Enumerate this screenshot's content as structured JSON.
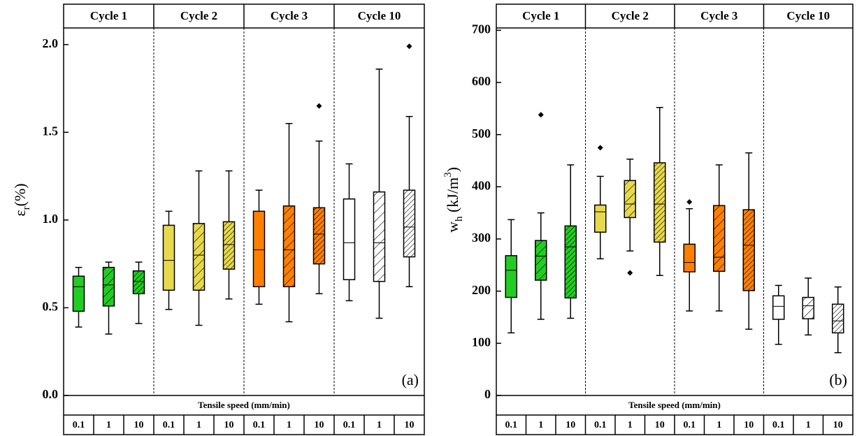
{
  "chart_data": [
    {
      "type": "box",
      "panel_label": "(a)",
      "ylabel": [
        {
          "text": "ε"
        },
        {
          "text": "r",
          "shift": "sub"
        },
        {
          "text": "(%)"
        }
      ],
      "xlabel": "Tensile speed (mm/min)",
      "groups": [
        "Cycle 1",
        "Cycle 2",
        "Cycle 3",
        "Cycle 10"
      ],
      "group_colors": [
        "#22cc22",
        "#e8d94c",
        "#ff8000",
        "#ffffff"
      ],
      "categories": [
        "0.1",
        "1",
        "10",
        "0.1",
        "1",
        "10",
        "0.1",
        "1",
        "10",
        "0.1",
        "1",
        "10"
      ],
      "hatch": [
        "none",
        "sparse",
        "dense",
        "none",
        "sparse",
        "dense",
        "none",
        "sparse",
        "dense",
        "none",
        "sparse",
        "dense"
      ],
      "ylim": [
        0,
        2.23
      ],
      "yticks": [
        {
          "value": 0,
          "label": "0.0"
        },
        0.5,
        {
          "value": 1,
          "label": "1.0"
        },
        1.5,
        {
          "value": 2,
          "label": "2.0"
        }
      ],
      "boxes": [
        {
          "whislo": 0.39,
          "q1": 0.48,
          "med": 0.62,
          "q3": 0.68,
          "whishi": 0.73,
          "fliers": []
        },
        {
          "whislo": 0.35,
          "q1": 0.51,
          "med": 0.63,
          "q3": 0.73,
          "whishi": 0.76,
          "fliers": []
        },
        {
          "whislo": 0.41,
          "q1": 0.58,
          "med": 0.65,
          "q3": 0.71,
          "whishi": 0.76,
          "fliers": []
        },
        {
          "whislo": 0.49,
          "q1": 0.6,
          "med": 0.77,
          "q3": 0.97,
          "whishi": 1.05,
          "fliers": []
        },
        {
          "whislo": 0.4,
          "q1": 0.6,
          "med": 0.8,
          "q3": 0.98,
          "whishi": 1.28,
          "fliers": []
        },
        {
          "whislo": 0.55,
          "q1": 0.72,
          "med": 0.86,
          "q3": 0.99,
          "whishi": 1.28,
          "fliers": []
        },
        {
          "whislo": 0.52,
          "q1": 0.62,
          "med": 0.83,
          "q3": 1.05,
          "whishi": 1.17,
          "fliers": []
        },
        {
          "whislo": 0.42,
          "q1": 0.62,
          "med": 0.83,
          "q3": 1.08,
          "whishi": 1.55,
          "fliers": []
        },
        {
          "whislo": 0.58,
          "q1": 0.75,
          "med": 0.92,
          "q3": 1.07,
          "whishi": 1.45,
          "fliers": [
            1.65
          ]
        },
        {
          "whislo": 0.54,
          "q1": 0.66,
          "med": 0.87,
          "q3": 1.12,
          "whishi": 1.32,
          "fliers": []
        },
        {
          "whislo": 0.44,
          "q1": 0.65,
          "med": 0.87,
          "q3": 1.16,
          "whishi": 1.86,
          "fliers": []
        },
        {
          "whislo": 0.62,
          "q1": 0.79,
          "med": 0.96,
          "q3": 1.17,
          "whishi": 1.59,
          "fliers": [
            1.99
          ]
        }
      ]
    },
    {
      "type": "box",
      "panel_label": "(b)",
      "ylabel": [
        {
          "text": "w"
        },
        {
          "text": "h",
          "shift": "sub"
        },
        {
          "text": " (kJ/m"
        },
        {
          "text": "3",
          "shift": "super"
        },
        {
          "text": ")"
        }
      ],
      "xlabel": "Tensile speed (mm/min)",
      "groups": [
        "Cycle 1",
        "Cycle 2",
        "Cycle 3",
        "Cycle 10"
      ],
      "group_colors": [
        "#22cc22",
        "#e8d94c",
        "#ff8000",
        "#ffffff"
      ],
      "categories": [
        "0.1",
        "1",
        "10",
        "0.1",
        "1",
        "10",
        "0.1",
        "1",
        "10",
        "0.1",
        "1",
        "10"
      ],
      "hatch": [
        "none",
        "sparse",
        "dense",
        "none",
        "sparse",
        "dense",
        "none",
        "sparse",
        "dense",
        "none",
        "sparse",
        "dense"
      ],
      "ylim": [
        0,
        750
      ],
      "yticks": [
        0,
        100,
        200,
        300,
        400,
        500,
        600,
        700
      ],
      "boxes": [
        {
          "whislo": 120,
          "q1": 188,
          "med": 240,
          "q3": 268,
          "whishi": 337,
          "fliers": []
        },
        {
          "whislo": 146,
          "q1": 221,
          "med": 267,
          "q3": 297,
          "whishi": 350,
          "fliers": [
            538
          ]
        },
        {
          "whislo": 148,
          "q1": 187,
          "med": 285,
          "q3": 325,
          "whishi": 442,
          "fliers": []
        },
        {
          "whislo": 262,
          "q1": 313,
          "med": 352,
          "q3": 365,
          "whishi": 420,
          "fliers": [
            475
          ]
        },
        {
          "whislo": 277,
          "q1": 341,
          "med": 367,
          "q3": 412,
          "whishi": 453,
          "fliers": [
            235
          ]
        },
        {
          "whislo": 230,
          "q1": 294,
          "med": 367,
          "q3": 446,
          "whishi": 552,
          "fliers": []
        },
        {
          "whislo": 162,
          "q1": 237,
          "med": 255,
          "q3": 290,
          "whishi": 358,
          "fliers": [
            371
          ]
        },
        {
          "whislo": 162,
          "q1": 238,
          "med": 265,
          "q3": 364,
          "whishi": 442,
          "fliers": []
        },
        {
          "whislo": 127,
          "q1": 201,
          "med": 288,
          "q3": 356,
          "whishi": 465,
          "fliers": []
        },
        {
          "whislo": 98,
          "q1": 146,
          "med": 171,
          "q3": 191,
          "whishi": 211,
          "fliers": []
        },
        {
          "whislo": 116,
          "q1": 147,
          "med": 172,
          "q3": 188,
          "whishi": 225,
          "fliers": []
        },
        {
          "whislo": 82,
          "q1": 120,
          "med": 143,
          "q3": 175,
          "whishi": 208,
          "fliers": []
        }
      ]
    }
  ]
}
